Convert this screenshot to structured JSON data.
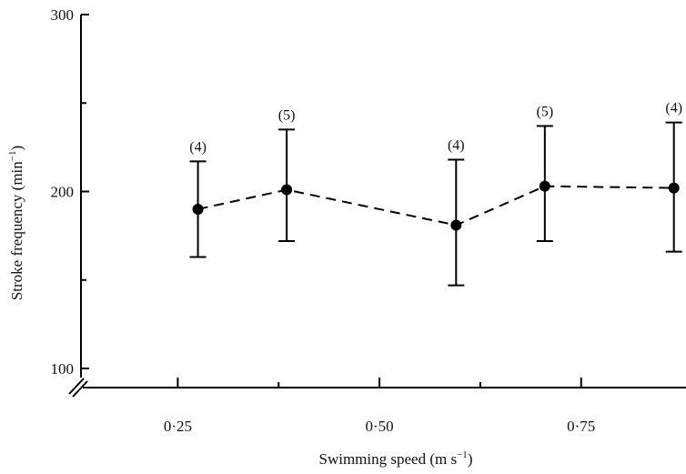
{
  "chart_data": {
    "type": "scatter",
    "xlabel": "Swimming speed (m s",
    "xlabel_unit_sup": "−1",
    "xlabel_close": ")",
    "ylabel": "Stroke frequency (min",
    "ylabel_unit_sup": "−1",
    "ylabel_close": ")",
    "xlim": [
      0.13,
      0.88
    ],
    "ylim": [
      85,
      300
    ],
    "y_axis_break": true,
    "line_style": "dashed",
    "grid": false,
    "x_ticks": [
      {
        "value": 0.25,
        "label": "0·25"
      },
      {
        "value": 0.5,
        "label": "0·50"
      },
      {
        "value": 0.75,
        "label": "0·75"
      }
    ],
    "y_ticks": [
      {
        "value": 100,
        "label": "100"
      },
      {
        "value": 200,
        "label": "200"
      },
      {
        "value": 300,
        "label": "300"
      }
    ],
    "y_minor_ticks": [
      150,
      250
    ],
    "x_minor_ticks": [
      0.375,
      0.625
    ],
    "points": [
      {
        "x": 0.275,
        "y": 190,
        "low": 163,
        "high": 217,
        "n_label": "(4)"
      },
      {
        "x": 0.385,
        "y": 201,
        "low": 172,
        "high": 235,
        "n_label": "(5)"
      },
      {
        "x": 0.595,
        "y": 181,
        "low": 147,
        "high": 218,
        "n_label": "(4)"
      },
      {
        "x": 0.705,
        "y": 203,
        "low": 172,
        "high": 237,
        "n_label": "(5)"
      },
      {
        "x": 0.865,
        "y": 202,
        "low": 166,
        "high": 239,
        "n_label": "(4)"
      }
    ]
  }
}
